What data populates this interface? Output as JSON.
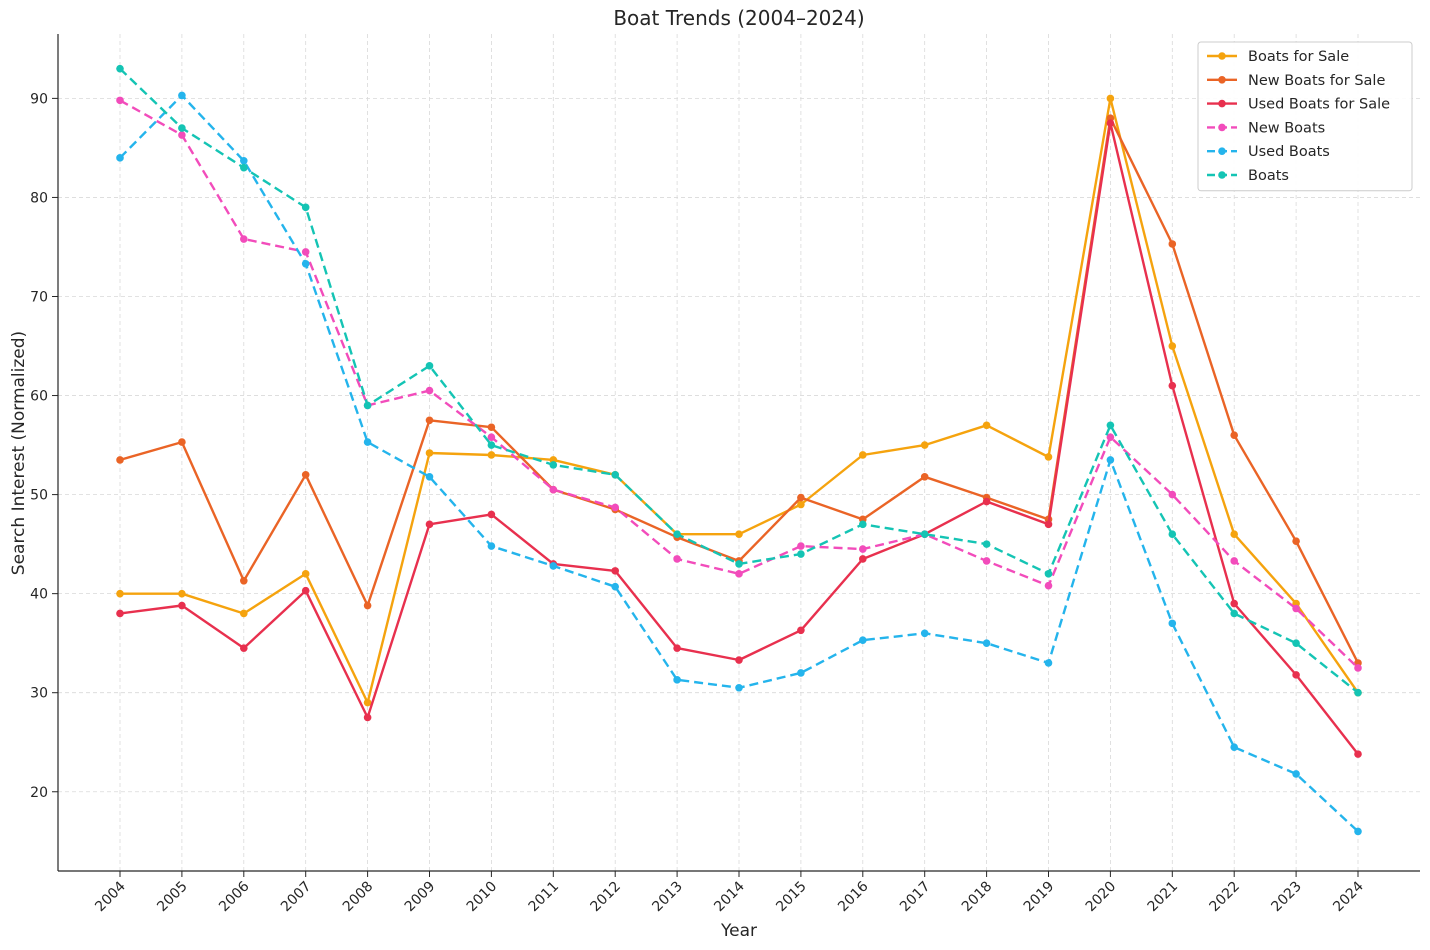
{
  "chart_data": {
    "type": "line",
    "title": "Boat Trends (2004–2024)",
    "xlabel": "Year",
    "ylabel": "Search Interest (Normalized)",
    "x": [
      2004,
      2005,
      2006,
      2007,
      2008,
      2009,
      2010,
      2011,
      2012,
      2013,
      2014,
      2015,
      2016,
      2017,
      2018,
      2019,
      2020,
      2021,
      2022,
      2023,
      2024
    ],
    "ylim": [
      12,
      96.5
    ],
    "yticks": [
      20,
      30,
      40,
      50,
      60,
      70,
      80,
      90
    ],
    "grid": true,
    "legend_position": "top-right",
    "series": [
      {
        "name": "Boats for Sale",
        "color": "#f5a30e",
        "dash": false,
        "values": [
          40,
          40,
          38,
          42,
          29,
          54.2,
          54,
          53.5,
          52,
          46,
          46,
          49,
          54,
          55,
          57,
          53.8,
          90,
          65,
          46,
          39,
          30
        ]
      },
      {
        "name": "New Boats for Sale",
        "color": "#ea6426",
        "dash": false,
        "values": [
          53.5,
          55.3,
          41.3,
          52,
          38.8,
          57.5,
          56.8,
          50.5,
          48.5,
          45.7,
          43.3,
          49.7,
          47.5,
          51.8,
          49.7,
          47.5,
          88,
          75.3,
          56,
          45.3,
          33
        ]
      },
      {
        "name": "Used Boats for Sale",
        "color": "#e8304e",
        "dash": false,
        "values": [
          38,
          38.8,
          34.5,
          40.3,
          27.5,
          47,
          48,
          43,
          42.3,
          34.5,
          33.3,
          36.3,
          43.5,
          46,
          49.3,
          47,
          87.5,
          61,
          39,
          31.8,
          23.8
        ]
      },
      {
        "name": "New Boats",
        "color": "#f24cbb",
        "dash": true,
        "values": [
          89.8,
          86.3,
          75.8,
          74.5,
          59,
          60.5,
          55.8,
          50.5,
          48.7,
          43.5,
          42,
          44.8,
          44.5,
          46,
          43.3,
          40.8,
          55.8,
          50,
          43.3,
          38.5,
          32.5
        ]
      },
      {
        "name": "Used Boats",
        "color": "#24b4ec",
        "dash": true,
        "values": [
          84,
          90.3,
          83.7,
          73.3,
          55.3,
          51.8,
          44.8,
          42.8,
          40.7,
          31.3,
          30.5,
          32,
          35.3,
          36,
          35,
          33,
          53.5,
          37,
          24.5,
          21.8,
          16
        ]
      },
      {
        "name": "Boats",
        "color": "#14c4b4",
        "dash": true,
        "values": [
          93,
          87,
          83,
          79,
          59,
          63,
          55,
          53,
          52,
          46,
          43,
          44,
          47,
          46,
          45,
          42,
          57,
          46,
          38,
          35,
          30
        ]
      }
    ]
  }
}
